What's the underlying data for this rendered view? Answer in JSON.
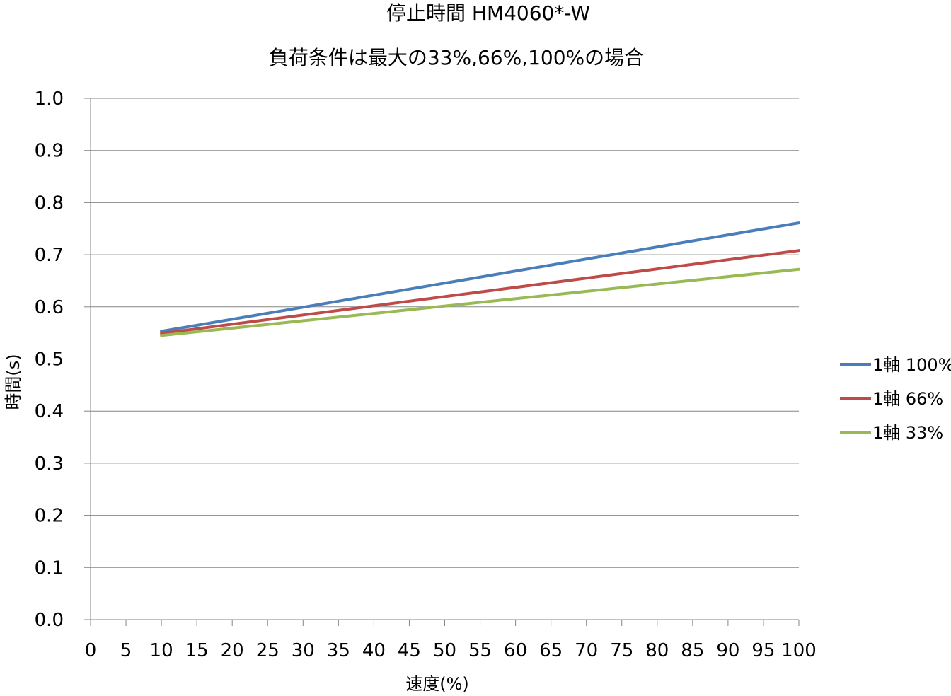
{
  "chart_data": {
    "type": "line",
    "title": "停止時間 HM4060*-W",
    "subtitle": "負荷条件は最大の33%,66%,100%の場合",
    "xlabel": "速度(%)",
    "ylabel": "時間(s)",
    "xlim": [
      0,
      100
    ],
    "ylim": [
      0,
      1.0
    ],
    "x_ticks": [
      "0",
      "5",
      "10",
      "15",
      "20",
      "25",
      "30",
      "35",
      "40",
      "45",
      "50",
      "55",
      "60",
      "65",
      "70",
      "75",
      "80",
      "85",
      "90",
      "95",
      "100"
    ],
    "y_ticks": [
      "0.0",
      "0.1",
      "0.2",
      "0.3",
      "0.4",
      "0.5",
      "0.6",
      "0.7",
      "0.8",
      "0.9",
      "1.0"
    ],
    "grid": "horizontal",
    "legend_position": "right",
    "x": [
      10,
      100
    ],
    "series": [
      {
        "name": "1軸 100%",
        "color": "#4a7ebb",
        "values": [
          0.553,
          0.761
        ]
      },
      {
        "name": "1軸 66%",
        "color": "#be4b48",
        "values": [
          0.549,
          0.708
        ]
      },
      {
        "name": "1軸 33%",
        "color": "#98b954",
        "values": [
          0.545,
          0.672
        ]
      }
    ]
  }
}
